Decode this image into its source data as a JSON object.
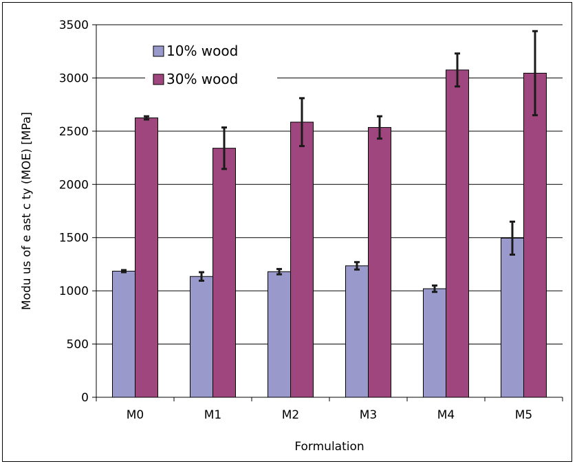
{
  "chart_data": {
    "type": "bar",
    "title": "",
    "xlabel": "Formulation",
    "ylabel": "Modu us of e ast c ty (MOE) [MPa]",
    "categories": [
      "M0",
      "M1",
      "M2",
      "M3",
      "M4",
      "M5"
    ],
    "ylim": [
      0,
      3500
    ],
    "yticks": [
      0,
      500,
      1000,
      1500,
      2000,
      2500,
      3000,
      3500
    ],
    "grid": true,
    "legend_position": "top-left",
    "series": [
      {
        "name": "10% wood",
        "color": "#9999cc",
        "values": [
          1185,
          1135,
          1180,
          1235,
          1020,
          1495
        ],
        "errors": [
          10,
          40,
          25,
          35,
          30,
          155
        ]
      },
      {
        "name": "30% wood",
        "color": "#a0467e",
        "values": [
          2625,
          2340,
          2585,
          2535,
          3075,
          3045
        ],
        "errors": [
          15,
          195,
          225,
          105,
          155,
          395
        ]
      }
    ]
  }
}
